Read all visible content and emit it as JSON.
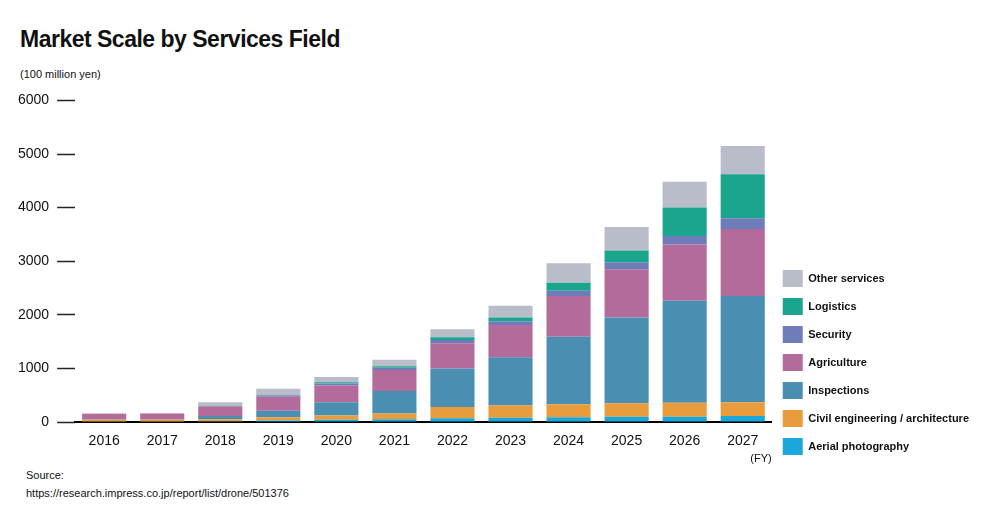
{
  "chart_data": {
    "type": "bar",
    "title": "Market Scale by Services Field",
    "y_label": "(100 million yen)",
    "x_label": "(FY)",
    "source": [
      "Source:",
      "https://research.impress.co.jp/report/list/drone/501376"
    ],
    "categories": [
      "2016",
      "2017",
      "2018",
      "2019",
      "2020",
      "2021",
      "2022",
      "2023",
      "2024",
      "2025",
      "2026",
      "2027"
    ],
    "series": [
      {
        "name": "Aerial photography",
        "color": "#1ba6dc",
        "values": [
          10,
          10,
          15,
          30,
          40,
          50,
          70,
          80,
          90,
          100,
          100,
          110
        ]
      },
      {
        "name": "Civil engineering / architecture",
        "color": "#e99c3b",
        "values": [
          30,
          30,
          35,
          60,
          80,
          110,
          210,
          230,
          240,
          250,
          260,
          260
        ]
      },
      {
        "name": "Inspections",
        "color": "#4a8fb1",
        "values": [
          5,
          5,
          60,
          120,
          250,
          420,
          720,
          900,
          1260,
          1600,
          1900,
          1980
        ]
      },
      {
        "name": "Agriculture",
        "color": "#b36b9b",
        "values": [
          110,
          115,
          180,
          260,
          310,
          390,
          470,
          600,
          760,
          900,
          1050,
          1250
        ]
      },
      {
        "name": "Security",
        "color": "#6e7cb9",
        "values": [
          0,
          0,
          10,
          25,
          40,
          40,
          60,
          70,
          100,
          130,
          160,
          200
        ]
      },
      {
        "name": "Logistics",
        "color": "#1ba58f",
        "values": [
          0,
          0,
          5,
          10,
          20,
          30,
          50,
          70,
          150,
          220,
          530,
          820
        ]
      },
      {
        "name": "Other services",
        "color": "#b9bdc9",
        "values": [
          5,
          5,
          65,
          115,
          100,
          120,
          150,
          220,
          360,
          440,
          480,
          530
        ]
      }
    ],
    "ylim": [
      0,
      6000
    ],
    "yticks": [
      0,
      1000,
      2000,
      3000,
      4000,
      5000,
      6000
    ],
    "grid": false,
    "stacked": true,
    "legend": "right"
  }
}
